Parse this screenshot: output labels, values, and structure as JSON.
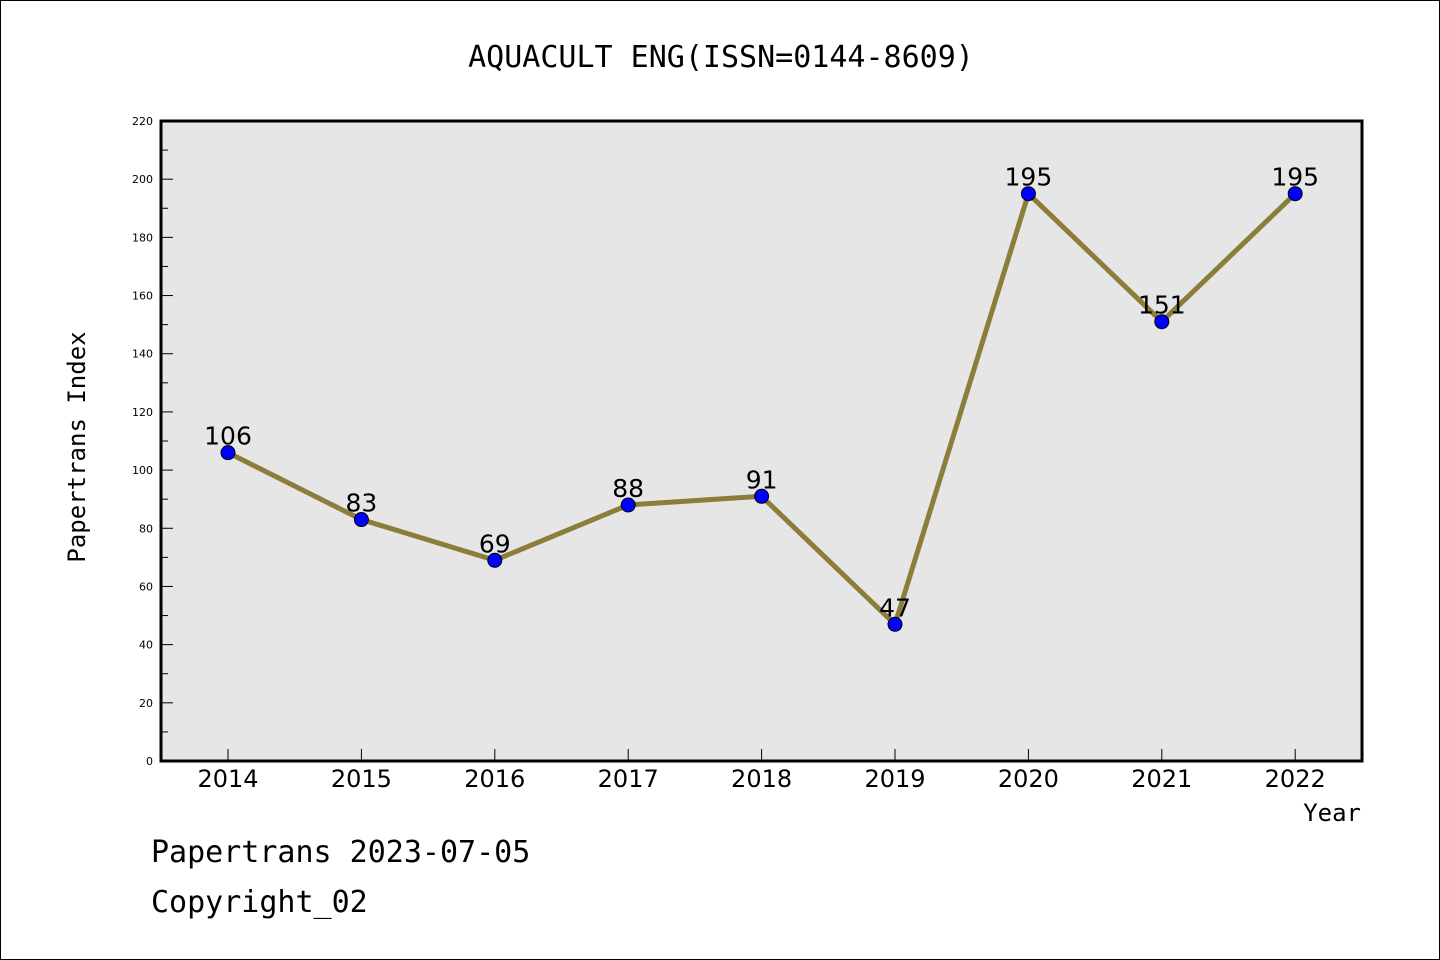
{
  "footer": {
    "line1": "Papertrans 2023-07-05",
    "line2": "Copyright_02"
  },
  "colors": {
    "line": "#8b7d3a",
    "marker": "#0000ff",
    "plot_background": "#e6e6e6",
    "frame": "#000000"
  },
  "chart_data": {
    "type": "line",
    "title": "AQUACULT ENG(ISSN=0144-8609)",
    "xlabel": "Year",
    "ylabel": "Papertrans Index",
    "categories": [
      "2014",
      "2015",
      "2016",
      "2017",
      "2018",
      "2019",
      "2020",
      "2021",
      "2022"
    ],
    "series": [
      {
        "values": [
          106,
          83,
          69,
          88,
          91,
          47,
          195,
          151,
          195
        ]
      }
    ],
    "data_labels": [
      "106",
      "83",
      "69",
      "88",
      "91",
      "47",
      "195",
      "151",
      "195"
    ],
    "ylim": [
      0,
      220
    ],
    "yticks": [
      "0",
      "20",
      "40",
      "60",
      "80",
      "100",
      "120",
      "140",
      "160",
      "180",
      "200",
      "220"
    ],
    "grid": false,
    "markers": "circle"
  }
}
